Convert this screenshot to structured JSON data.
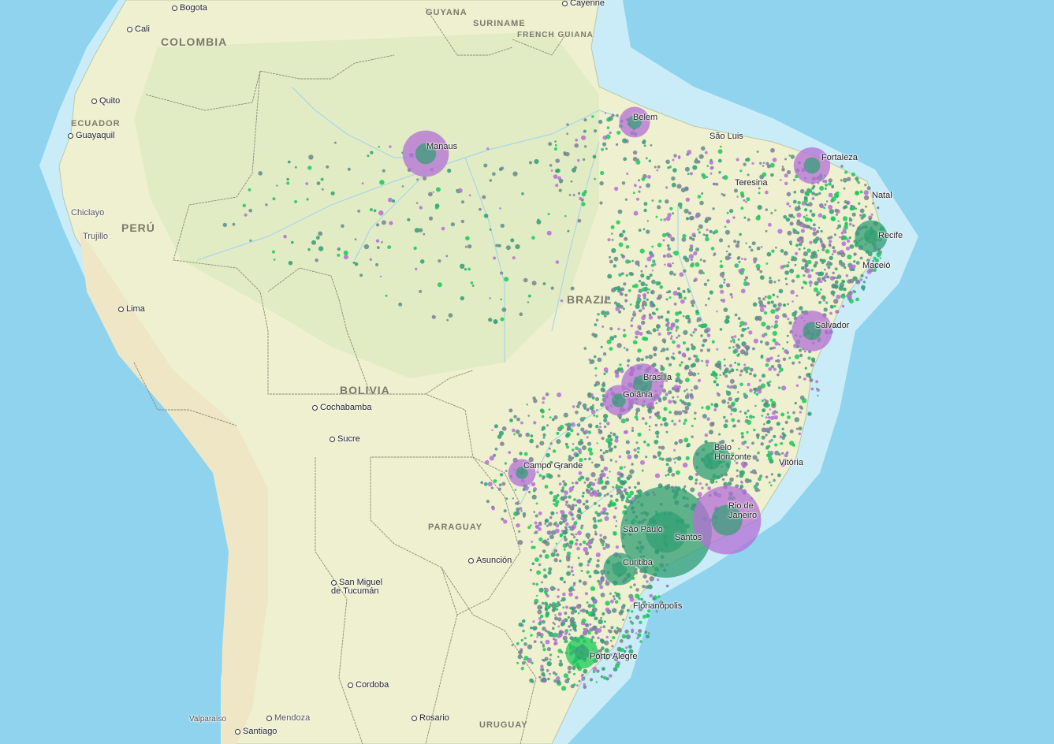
{
  "map": {
    "countries": [
      "COLOMBIA",
      "GUYANA",
      "SURINAME",
      "FRENCH GUIANA",
      "ECUADOR",
      "PERÚ",
      "BRAZIL",
      "BOLIVIA",
      "PARAGUAY",
      "URUGUAY"
    ],
    "cities": [
      "Bogota",
      "Cali",
      "Cayenne",
      "Quito",
      "Guayaquil",
      "Chiclayo",
      "Trujillo",
      "Lima",
      "Cochabamba",
      "Sucre",
      "San Miguel de Tucumán",
      "Cordoba",
      "Valparaíso",
      "Mendoza",
      "Santiago",
      "Rosario",
      "Asunción",
      "Manaus",
      "Belem",
      "São Luis",
      "Fortaleza",
      "Teresina",
      "Natal",
      "Recife",
      "Maceió",
      "Salvador",
      "Brasilia",
      "Goiânia",
      "Belo Horizonte",
      "Vitória",
      "Campo Grande",
      "Rio de Janeiro",
      "São Paulo",
      "Santos",
      "Curitiba",
      "Florianópolis",
      "Porto Alegre"
    ],
    "colors": {
      "ocean": "#8fd3ee",
      "land": "#eef0cf",
      "series_a": "#b36fd6",
      "series_b": "#2f9e73",
      "series_c": "#19c95a"
    },
    "bubbles": [
      {
        "name": "São Paulo",
        "size": 1.0,
        "series": "b"
      },
      {
        "name": "Rio de Janeiro",
        "size": 0.72,
        "series": "a"
      },
      {
        "name": "Manaus",
        "size": 0.45,
        "series": "a"
      },
      {
        "name": "Brasilia",
        "size": 0.4,
        "series": "a"
      },
      {
        "name": "Belo Horizonte",
        "size": 0.35,
        "series": "b"
      },
      {
        "name": "Salvador",
        "size": 0.38,
        "series": "a"
      },
      {
        "name": "Fortaleza",
        "size": 0.33,
        "series": "a"
      },
      {
        "name": "Recife",
        "size": 0.28,
        "series": "b"
      },
      {
        "name": "Curitiba",
        "size": 0.28,
        "series": "b"
      },
      {
        "name": "Porto Alegre",
        "size": 0.28,
        "series": "c"
      },
      {
        "name": "Goiânia",
        "size": 0.26,
        "series": "a"
      },
      {
        "name": "Belem",
        "size": 0.26,
        "series": "a"
      },
      {
        "name": "Campo Grande",
        "size": 0.22,
        "series": "a"
      }
    ]
  }
}
